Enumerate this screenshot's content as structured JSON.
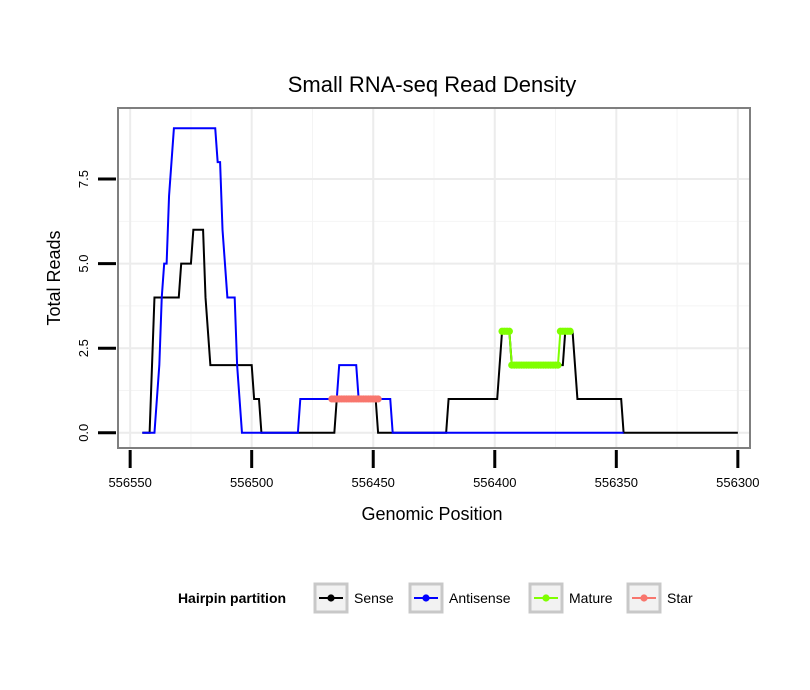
{
  "chart_data": {
    "type": "line",
    "title": "Small RNA-seq Read Density",
    "xlabel": "Genomic Position",
    "ylabel": "Total Reads",
    "xlim": [
      556555,
      556295
    ],
    "ylim": [
      -0.45,
      9.6
    ],
    "x_reversed": true,
    "x_ticks": [
      556550,
      556500,
      556450,
      556400,
      556350,
      556300
    ],
    "x_tick_labels": [
      "556550",
      "556500",
      "556450",
      "556400",
      "556350",
      "556300"
    ],
    "y_ticks": [
      0,
      2.5,
      5,
      7.5
    ],
    "y_tick_labels": [
      "0.0",
      "2.5",
      "5.0",
      "7.5"
    ],
    "grid": true,
    "legend": {
      "title": "Hairpin partition",
      "position": "bottom",
      "entries": [
        "Sense",
        "Antisense",
        "Mature",
        "Star"
      ]
    },
    "series": [
      {
        "name": "Sense",
        "color": "#000000",
        "style": "line",
        "x": [
          556545,
          556543,
          556542,
          556541,
          556540,
          556535,
          556534,
          556533,
          556532,
          556531,
          556530,
          556529,
          556528,
          556526,
          556525,
          556524,
          556523,
          556522,
          556521,
          556520,
          556519,
          556518,
          556517,
          556516,
          556515,
          556510,
          556505,
          556500,
          556499,
          556498,
          556497,
          556496,
          556495,
          556490,
          556485,
          556480,
          556475,
          556470,
          556466,
          556465,
          556460,
          556455,
          556450,
          556449,
          556448,
          556447,
          556446,
          556440,
          556435,
          556430,
          556425,
          556420,
          556419,
          556418,
          556415,
          556410,
          556405,
          556400,
          556399,
          556398,
          556397,
          556396,
          556395,
          556394,
          556393,
          556392,
          556390,
          556385,
          556380,
          556375,
          556373,
          556372,
          556371,
          556370,
          556369,
          556368,
          556367,
          556366,
          556365,
          556360,
          556355,
          556350,
          556349,
          556348,
          556347,
          556346,
          556340,
          556330,
          556320,
          556310,
          556300
        ],
        "y": [
          0,
          0,
          0,
          2,
          4,
          4,
          4,
          4,
          4,
          4,
          4,
          5,
          5,
          5,
          5,
          6,
          6,
          6,
          6,
          6,
          4,
          3,
          2,
          2,
          2,
          2,
          2,
          2,
          1,
          1,
          1,
          0,
          0,
          0,
          0,
          0,
          0,
          0,
          0,
          1,
          1,
          1,
          1,
          1,
          0,
          0,
          0,
          0,
          0,
          0,
          0,
          0,
          1,
          1,
          1,
          1,
          1,
          1,
          1,
          2,
          3,
          3,
          3,
          3,
          2,
          2,
          2,
          2,
          2,
          2,
          2,
          2,
          3,
          3,
          3,
          3,
          2,
          1,
          1,
          1,
          1,
          1,
          1,
          1,
          0,
          0,
          0,
          0,
          0,
          0,
          0
        ]
      },
      {
        "name": "Antisense",
        "color": "#0000ff",
        "style": "line",
        "x": [
          556545,
          556540,
          556538,
          556537,
          556536,
          556535,
          556534,
          556533,
          556532,
          556531,
          556530,
          556529,
          556528,
          556525,
          556520,
          556515,
          556514,
          556513,
          556512,
          556511,
          556510,
          556509,
          556508,
          556507,
          556506,
          556505,
          556504,
          556503,
          556502,
          556501,
          556500,
          556495,
          556490,
          556485,
          556481,
          556480,
          556475,
          556470,
          556465,
          556464,
          556460,
          556457,
          556456,
          556455,
          556450,
          556445,
          556443,
          556442,
          556441,
          556440,
          556435,
          556430,
          556420,
          556400,
          556380,
          556360,
          556350,
          556347
        ],
        "y": [
          0,
          0,
          2,
          4,
          5,
          5,
          7,
          8,
          9,
          9,
          9,
          9,
          9,
          9,
          9,
          9,
          8,
          8,
          6,
          5,
          4,
          4,
          4,
          4,
          2,
          1,
          0,
          0,
          0,
          0,
          0,
          0,
          0,
          0,
          0,
          1,
          1,
          1,
          1,
          2,
          2,
          2,
          1,
          1,
          1,
          1,
          1,
          0,
          0,
          0,
          0,
          0,
          0,
          0,
          0,
          0,
          0,
          0
        ]
      },
      {
        "name": "Mature",
        "color": "#7fff00",
        "style": "points",
        "x": [
          556397,
          556396,
          556395,
          556394,
          556393,
          556392,
          556391,
          556390,
          556389,
          556388,
          556387,
          556386,
          556385,
          556384,
          556383,
          556382,
          556381,
          556380,
          556379,
          556378,
          556377,
          556376,
          556375,
          556374,
          556373,
          556372,
          556371,
          556370,
          556369
        ],
        "y": [
          3,
          3,
          3,
          3,
          2,
          2,
          2,
          2,
          2,
          2,
          2,
          2,
          2,
          2,
          2,
          2,
          2,
          2,
          2,
          2,
          2,
          2,
          2,
          2,
          3,
          3,
          3,
          3,
          3
        ]
      },
      {
        "name": "Star",
        "color": "#f8766d",
        "style": "points",
        "x": [
          556467,
          556466,
          556465,
          556464,
          556463,
          556462,
          556461,
          556460,
          556459,
          556458,
          556457,
          556456,
          556455,
          556454,
          556453,
          556452,
          556451,
          556450,
          556449,
          556448
        ],
        "y": [
          1,
          1,
          1,
          1,
          1,
          1,
          1,
          1,
          1,
          1,
          1,
          1,
          1,
          1,
          1,
          1,
          1,
          1,
          1,
          1
        ]
      }
    ]
  }
}
